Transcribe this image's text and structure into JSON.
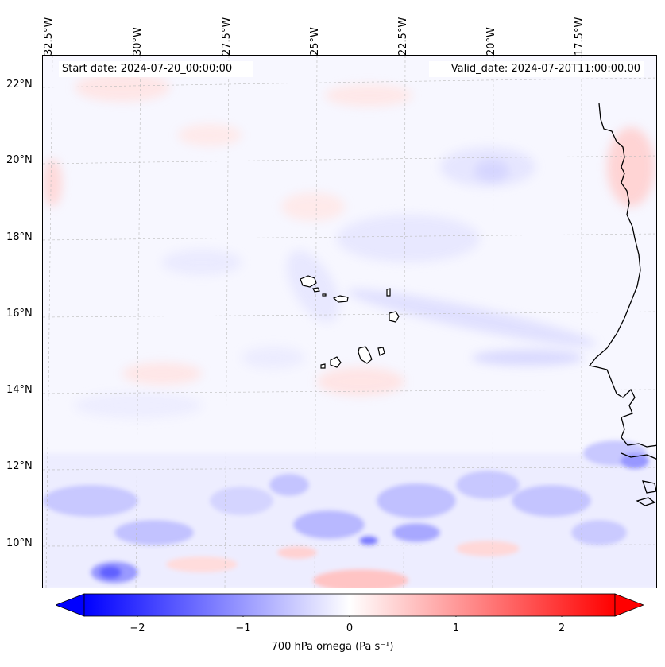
{
  "header": {
    "start_date": "Start date: 2024-07-20_00:00:00",
    "valid_date": "Valid_date: 2024-07-20T11:00:00.00"
  },
  "axes": {
    "lon_labels": [
      "32.5°W",
      "30°W",
      "27.5°W",
      "25°W",
      "22.5°W",
      "20°W",
      "17.5°W"
    ],
    "lat_labels": [
      "22°N",
      "20°N",
      "18°N",
      "16°N",
      "14°N",
      "12°N",
      "10°N"
    ]
  },
  "colorbar": {
    "label": "700 hPa omega (Pa s⁻¹)",
    "ticks": [
      "−2",
      "−1",
      "0",
      "1",
      "2"
    ],
    "tick_values": [
      -2,
      -1,
      0,
      1,
      2
    ],
    "range": [
      -2.5,
      2.5
    ],
    "extend": "both",
    "low_color": "#0000ff",
    "mid_color": "#ffffff",
    "high_color": "#ff0000"
  },
  "map": {
    "field": "700 hPa omega",
    "colormap": "bwr",
    "features": [
      "coastline-africa",
      "cape-verde-islands"
    ],
    "gridlines": true
  }
}
